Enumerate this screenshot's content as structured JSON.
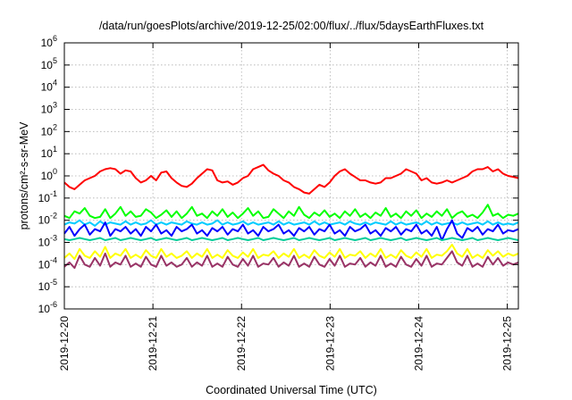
{
  "chart_data": {
    "type": "line",
    "title": "/data/run/goesPlots/archive/2019-12-25/02:00/flux/../flux/5daysEarthFluxes.txt",
    "xlabel": "Coordinated Universal Time (UTC)",
    "ylabel": "protons/cm²-s-sr-MeV",
    "y_scale": "log",
    "ylim_exponents": [
      -6,
      6
    ],
    "xlim": [
      "2019-12-20",
      "2019-12-25T03:00"
    ],
    "x_ticks": [
      "2019-12-20",
      "2019-12-21",
      "2019-12-22",
      "2019-12-23",
      "2019-12-24",
      "2019-12-25"
    ],
    "grid": true,
    "series": [
      {
        "color": "#ff0000",
        "values_log10": [
          -0.3,
          -0.5,
          -0.6,
          -0.4,
          -0.2,
          -0.1,
          0.0,
          0.2,
          0.3,
          0.35,
          0.3,
          0.1,
          0.25,
          0.2,
          -0.1,
          -0.3,
          -0.2,
          0.0,
          -0.2,
          0.15,
          0.2,
          -0.1,
          -0.3,
          -0.45,
          -0.5,
          -0.35,
          -0.1,
          0.1,
          0.3,
          0.25,
          -0.2,
          -0.3,
          -0.25,
          -0.4,
          -0.3,
          -0.1,
          0.0,
          0.3,
          0.4,
          0.5,
          0.25,
          0.1,
          0.0,
          -0.2,
          -0.3,
          -0.5,
          -0.6,
          -0.75,
          -0.8,
          -0.6,
          -0.4,
          -0.5,
          -0.3,
          0.0,
          0.2,
          0.3,
          0.1,
          -0.05,
          -0.2,
          -0.2,
          -0.3,
          -0.35,
          -0.3,
          -0.1,
          -0.1,
          0.0,
          0.1,
          0.3,
          0.2,
          0.1,
          -0.2,
          -0.1,
          -0.3,
          -0.35,
          -0.3,
          -0.2,
          -0.3,
          -0.2,
          -0.1,
          0.0,
          0.2,
          0.3,
          0.3,
          0.4,
          0.2,
          0.3,
          0.1,
          0.0,
          -0.05,
          -0.1
        ]
      },
      {
        "color": "#00ff00",
        "values_log10": [
          -1.8,
          -1.9,
          -1.6,
          -1.7,
          -1.45,
          -1.8,
          -1.9,
          -1.85,
          -1.5,
          -1.9,
          -1.7,
          -1.4,
          -1.8,
          -1.6,
          -1.85,
          -1.8,
          -1.5,
          -1.65,
          -1.9,
          -1.75,
          -1.55,
          -1.85,
          -1.6,
          -1.9,
          -1.7,
          -1.4,
          -1.8,
          -1.7,
          -1.9,
          -1.6,
          -1.8,
          -1.5,
          -1.85,
          -1.65,
          -1.9,
          -1.7,
          -1.45,
          -1.8,
          -1.6,
          -1.9,
          -1.85,
          -1.5,
          -1.7,
          -1.9,
          -1.6,
          -1.8,
          -1.4,
          -1.75,
          -1.9,
          -1.65,
          -1.8,
          -1.55,
          -1.85,
          -1.7,
          -1.9,
          -1.6,
          -1.8,
          -1.5,
          -1.85,
          -1.7,
          -1.9,
          -1.65,
          -1.8,
          -1.45,
          -1.85,
          -1.7,
          -1.9,
          -1.6,
          -1.8,
          -1.55,
          -1.9,
          -1.7,
          -1.85,
          -1.6,
          -1.8,
          -1.5,
          -1.9,
          -1.7,
          -1.6,
          -1.85,
          -1.75,
          -1.9,
          -1.65,
          -1.3,
          -1.8,
          -1.7,
          -1.9,
          -1.75,
          -1.8,
          -1.7
        ]
      },
      {
        "color": "#00ccff",
        "values_log10": [
          -2.2,
          -2.1,
          -2.15,
          -2.0,
          -2.2,
          -2.1,
          -2.25,
          -2.05,
          -2.2,
          -2.1,
          -2.15,
          -2.2,
          -2.05,
          -2.2,
          -2.1,
          -2.2,
          -2.15,
          -2.0,
          -2.2,
          -2.1,
          -2.2,
          -2.1,
          -2.15,
          -2.2,
          -2.05,
          -2.15,
          -2.2,
          -2.1,
          -2.2,
          -2.15,
          -2.0,
          -2.2,
          -2.1,
          -2.2,
          -2.15,
          -2.05,
          -2.2,
          -2.1,
          -2.2,
          -2.15,
          -2.1,
          -2.2,
          -2.05,
          -2.2,
          -2.1,
          -2.2,
          -2.15,
          -2.1,
          -2.2,
          -2.05,
          -2.2,
          -2.1,
          -2.2,
          -2.15,
          -2.1,
          -2.2,
          -2.05,
          -2.15,
          -2.2,
          -2.1,
          -2.2,
          -2.1,
          -2.15,
          -2.2,
          -2.05,
          -2.2,
          -2.1,
          -2.2,
          -2.15,
          -2.1,
          -2.2,
          -2.05,
          -2.2,
          -2.1,
          -2.2,
          -2.15,
          -2.1,
          -2.2,
          -2.1,
          -2.2,
          -2.15,
          -2.1,
          -2.2,
          -2.05,
          -2.2,
          -2.1,
          -2.2,
          -2.15,
          -2.2,
          -2.1
        ]
      },
      {
        "color": "#0000ff",
        "values_log10": [
          -2.6,
          -2.3,
          -2.7,
          -2.4,
          -2.2,
          -2.65,
          -2.4,
          -2.5,
          -2.1,
          -2.7,
          -2.4,
          -2.5,
          -2.3,
          -2.6,
          -2.4,
          -2.7,
          -2.3,
          -2.5,
          -2.2,
          -2.6,
          -2.45,
          -2.7,
          -2.3,
          -2.5,
          -2.4,
          -2.2,
          -2.6,
          -2.45,
          -2.7,
          -2.35,
          -2.5,
          -2.3,
          -2.65,
          -2.4,
          -2.5,
          -2.2,
          -2.6,
          -2.45,
          -2.7,
          -2.3,
          -2.5,
          -2.4,
          -2.2,
          -2.6,
          -2.45,
          -2.7,
          -2.35,
          -2.5,
          -2.3,
          -2.65,
          -2.4,
          -2.5,
          -2.2,
          -2.6,
          -2.45,
          -2.7,
          -2.3,
          -2.5,
          -2.4,
          -2.2,
          -2.6,
          -2.45,
          -2.7,
          -2.35,
          -2.5,
          -2.3,
          -2.65,
          -2.4,
          -2.5,
          -2.2,
          -2.6,
          -2.45,
          -2.7,
          -2.3,
          -2.9,
          -2.4,
          -2.0,
          -2.6,
          -2.8,
          -2.35,
          -2.5,
          -2.3,
          -2.65,
          -2.4,
          -2.5,
          -2.2,
          -2.6,
          -2.45,
          -2.5,
          -2.4
        ]
      },
      {
        "color": "#00cc99",
        "values_log10": [
          -2.85,
          -2.9,
          -2.85,
          -2.8,
          -2.85,
          -2.9,
          -2.85,
          -2.8,
          -2.9,
          -2.85,
          -2.8,
          -2.9,
          -2.85,
          -2.8,
          -2.85,
          -2.9,
          -2.85,
          -2.8,
          -2.9,
          -2.85,
          -2.8,
          -2.85,
          -2.9,
          -2.85,
          -2.8,
          -2.9,
          -2.85,
          -2.8,
          -2.85,
          -2.9,
          -2.85,
          -2.8,
          -2.9,
          -2.85,
          -2.8,
          -2.85,
          -2.9,
          -2.85,
          -2.8,
          -2.9,
          -2.85,
          -2.8,
          -2.85,
          -2.9,
          -2.85,
          -2.8,
          -2.9,
          -2.85,
          -2.8,
          -2.85,
          -2.9,
          -2.85,
          -2.8,
          -2.9,
          -2.85,
          -2.8,
          -2.85,
          -2.9,
          -2.85,
          -2.8,
          -2.9,
          -2.85,
          -2.8,
          -2.85,
          -2.9,
          -2.85,
          -2.8,
          -2.9,
          -2.85,
          -2.8,
          -2.85,
          -2.9,
          -2.85,
          -2.8,
          -2.9,
          -2.85,
          -2.8,
          -2.85,
          -2.9,
          -2.85,
          -2.8,
          -2.9,
          -2.85,
          -2.8,
          -2.85,
          -2.9,
          -2.85,
          -2.8,
          -2.85,
          -2.9
        ]
      },
      {
        "color": "#ffff00",
        "values_log10": [
          -3.7,
          -3.5,
          -3.75,
          -3.3,
          -3.6,
          -3.7,
          -3.4,
          -3.65,
          -3.2,
          -3.7,
          -3.5,
          -3.6,
          -3.3,
          -3.7,
          -3.55,
          -3.7,
          -3.35,
          -3.6,
          -3.7,
          -3.3,
          -3.65,
          -3.5,
          -3.7,
          -3.6,
          -3.4,
          -3.7,
          -3.5,
          -3.65,
          -3.3,
          -3.7,
          -3.55,
          -3.7,
          -3.35,
          -3.6,
          -3.7,
          -3.45,
          -3.65,
          -3.3,
          -3.7,
          -3.55,
          -3.6,
          -3.4,
          -3.7,
          -3.5,
          -3.65,
          -3.3,
          -3.7,
          -3.55,
          -3.7,
          -3.35,
          -3.6,
          -3.7,
          -3.45,
          -3.65,
          -3.3,
          -3.7,
          -3.55,
          -3.6,
          -3.4,
          -3.7,
          -3.5,
          -3.65,
          -3.3,
          -3.7,
          -3.55,
          -3.7,
          -3.35,
          -3.6,
          -3.7,
          -3.45,
          -3.65,
          -3.3,
          -3.7,
          -3.55,
          -3.6,
          -3.4,
          -3.1,
          -3.5,
          -3.65,
          -3.3,
          -3.7,
          -3.55,
          -3.7,
          -3.35,
          -3.6,
          -3.4,
          -3.65,
          -3.5,
          -3.6,
          -3.5
        ]
      },
      {
        "color": "#993366",
        "values_log10": [
          -4.1,
          -3.9,
          -4.15,
          -3.6,
          -4.0,
          -4.1,
          -3.7,
          -4.05,
          -3.5,
          -4.1,
          -3.9,
          -4.0,
          -3.6,
          -4.1,
          -3.95,
          -4.1,
          -3.65,
          -4.0,
          -4.1,
          -3.6,
          -4.05,
          -3.9,
          -4.1,
          -4.0,
          -3.7,
          -4.1,
          -3.9,
          -4.05,
          -3.6,
          -4.1,
          -3.95,
          -4.1,
          -3.65,
          -4.0,
          -4.1,
          -3.75,
          -4.05,
          -3.6,
          -4.1,
          -3.95,
          -4.0,
          -3.7,
          -4.1,
          -3.9,
          -4.05,
          -3.6,
          -4.1,
          -3.95,
          -4.1,
          -3.65,
          -4.0,
          -4.1,
          -3.75,
          -4.05,
          -3.6,
          -4.1,
          -3.95,
          -4.0,
          -3.7,
          -4.1,
          -3.9,
          -4.05,
          -3.6,
          -4.1,
          -3.95,
          -4.1,
          -3.65,
          -4.0,
          -4.1,
          -3.75,
          -4.05,
          -3.6,
          -4.1,
          -3.95,
          -4.0,
          -3.7,
          -3.4,
          -3.9,
          -4.05,
          -3.6,
          -4.1,
          -3.95,
          -4.1,
          -3.65,
          -4.0,
          -3.7,
          -4.05,
          -3.9,
          -4.0,
          -3.9
        ]
      }
    ]
  }
}
